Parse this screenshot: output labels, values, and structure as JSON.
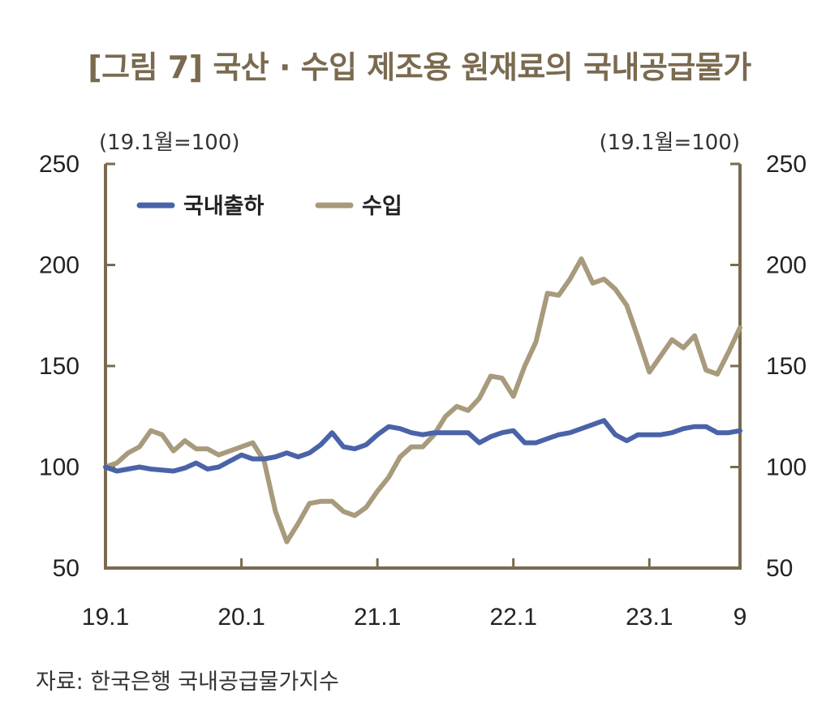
{
  "title": "[그림 7] 국산 · 수입 제조용 원재료의 국내공급물가",
  "unit_left": "(19.1월=100)",
  "unit_right": "(19.1월=100)",
  "source": "자료:  한국은행 국내공급물가지수",
  "colors": {
    "axis": "#7a6a4f",
    "domestic": "#4a63a8",
    "import": "#a89a7c"
  },
  "chart_data": {
    "type": "line",
    "ylim": [
      50,
      250
    ],
    "yticks": [
      50,
      100,
      150,
      200,
      250
    ],
    "xlim": [
      0,
      56
    ],
    "xticks": [
      {
        "x": 0,
        "label": "19.1"
      },
      {
        "x": 12,
        "label": "20.1"
      },
      {
        "x": 24,
        "label": "21.1"
      },
      {
        "x": 36,
        "label": "22.1"
      },
      {
        "x": 48,
        "label": "23.1"
      },
      {
        "x": 56,
        "label": "9"
      }
    ],
    "x": [
      0,
      1,
      2,
      3,
      4,
      5,
      6,
      7,
      8,
      9,
      10,
      11,
      12,
      13,
      14,
      15,
      16,
      17,
      18,
      19,
      20,
      21,
      22,
      23,
      24,
      25,
      26,
      27,
      28,
      29,
      30,
      31,
      32,
      33,
      34,
      35,
      36,
      37,
      38,
      39,
      40,
      41,
      42,
      43,
      44,
      45,
      46,
      47,
      48,
      49,
      50,
      51,
      52,
      53,
      54,
      55,
      56
    ],
    "legend_position": "top-left",
    "series": [
      {
        "name": "국내출하",
        "values": [
          100,
          98,
          99,
          100,
          99,
          98.5,
          98,
          99.5,
          102,
          99,
          100,
          103,
          106,
          104,
          104,
          105,
          107,
          105,
          107,
          111,
          117,
          110,
          109,
          111,
          116,
          120,
          119,
          117,
          116,
          117,
          117,
          117,
          117,
          112,
          115,
          117,
          118,
          112,
          112,
          114,
          116,
          117,
          119,
          121,
          123,
          116,
          113,
          116,
          116,
          116,
          117,
          119,
          120,
          120,
          117,
          117,
          118
        ]
      },
      {
        "name": "수입",
        "values": [
          100,
          102,
          107,
          110,
          118,
          116,
          108,
          113,
          109,
          109,
          106,
          108,
          110,
          112,
          103,
          78,
          63,
          72,
          82,
          83,
          83,
          78,
          76,
          80,
          88,
          95,
          105,
          110,
          110,
          116,
          125,
          130,
          128,
          134,
          145,
          144,
          135,
          150,
          162,
          186,
          185,
          193,
          203,
          191,
          193,
          188,
          180,
          164,
          147,
          155,
          163,
          159,
          165,
          148,
          146,
          157,
          169
        ]
      }
    ]
  }
}
